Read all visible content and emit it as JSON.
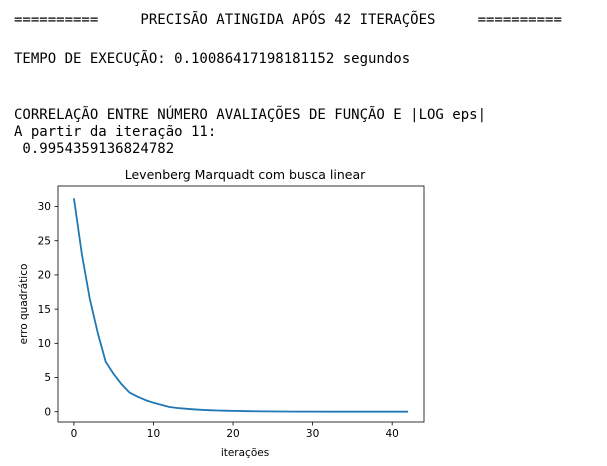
{
  "output": {
    "lines": [
      "==========     PRECISÃO ATINGIDA APÓS 42 ITERAÇÕES     ==========",
      "TEMPO DE EXECUÇÃO: 0.10086417198181152 segundos",
      "CORRELAÇÃO ENTRE NÚMERO AVALIAÇÕES DE FUNÇÃO E |LOG eps|",
      "A partir da iteração 11:",
      " 0.9954359136824782"
    ]
  },
  "chart_data": {
    "type": "line",
    "title": "Levenberg Marquadt com busca linear",
    "xlabel": "iterações",
    "ylabel": "erro quadrático",
    "xlim": [
      -2,
      44
    ],
    "ylim": [
      -1.5,
      33
    ],
    "x_ticks": [
      0,
      10,
      20,
      30,
      40
    ],
    "y_ticks": [
      0,
      5,
      10,
      15,
      20,
      25,
      30
    ],
    "grid": false,
    "series": [
      {
        "color": "#1f77b4",
        "x": [
          0,
          1,
          2,
          3,
          4,
          5,
          6,
          7,
          8,
          9,
          10,
          11,
          12,
          13,
          14,
          15,
          16,
          17,
          18,
          19,
          20,
          22,
          24,
          26,
          28,
          30,
          32,
          34,
          36,
          38,
          40,
          42
        ],
        "y": [
          31.2,
          23.0,
          16.5,
          11.5,
          7.3,
          5.5,
          4.0,
          2.8,
          2.2,
          1.7,
          1.3,
          1.0,
          0.7,
          0.55,
          0.45,
          0.35,
          0.28,
          0.22,
          0.18,
          0.15,
          0.12,
          0.08,
          0.05,
          0.035,
          0.025,
          0.018,
          0.012,
          0.008,
          0.005,
          0.003,
          0.002,
          0.001
        ]
      }
    ]
  }
}
